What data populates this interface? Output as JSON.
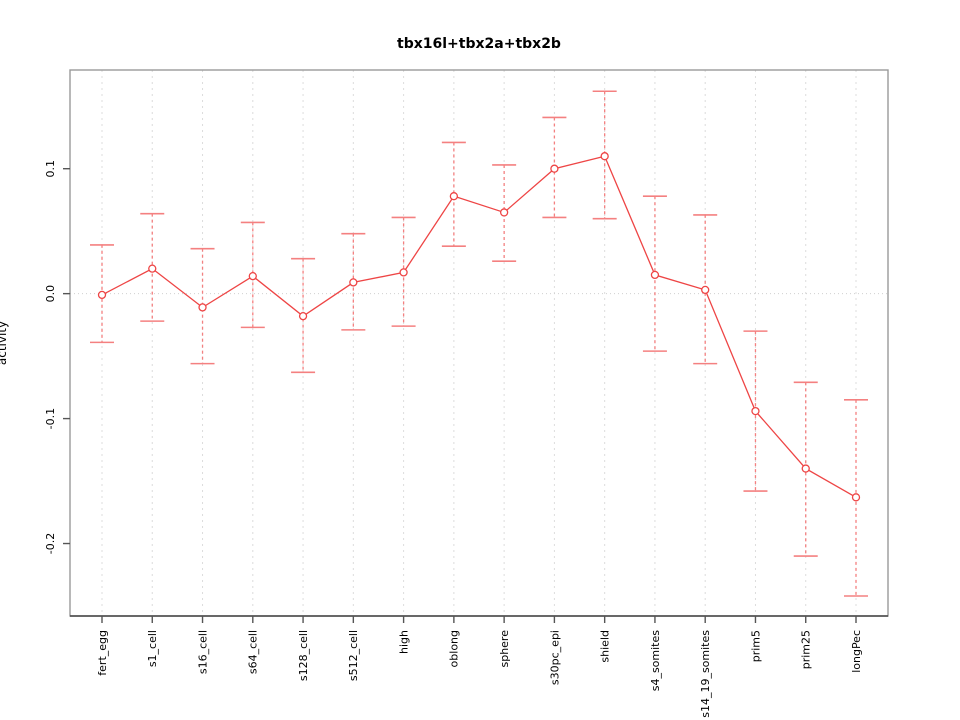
{
  "chart_data": {
    "type": "line",
    "title": "tbx16l+tbx2a+tbx2b",
    "ylabel": "activity",
    "xlabel": "",
    "categories": [
      "fert_egg",
      "s1_cell",
      "s16_cell",
      "s64_cell",
      "s128_cell",
      "s512_cell",
      "high",
      "oblong",
      "sphere",
      "s30pc_epi",
      "shield",
      "s4_somites",
      "s14_19_somites",
      "prim5",
      "prim25",
      "longPec"
    ],
    "values": [
      -0.001,
      0.02,
      -0.011,
      0.014,
      -0.018,
      0.009,
      0.017,
      0.078,
      0.065,
      0.1,
      0.11,
      0.015,
      0.003,
      -0.094,
      -0.14,
      -0.163
    ],
    "error_low": [
      -0.039,
      -0.022,
      -0.056,
      -0.027,
      -0.063,
      -0.029,
      -0.026,
      0.038,
      0.026,
      0.061,
      0.06,
      -0.046,
      -0.056,
      -0.158,
      -0.21,
      -0.242
    ],
    "error_high": [
      0.039,
      0.064,
      0.036,
      0.057,
      0.028,
      0.048,
      0.061,
      0.121,
      0.103,
      0.141,
      0.162,
      0.078,
      0.063,
      -0.03,
      -0.071,
      -0.085
    ],
    "ylim": [
      -0.258,
      0.179
    ],
    "y_ticks": {
      "values": [
        0.1,
        0.0,
        -0.1,
        -0.2
      ],
      "labels": [
        "0.1",
        "0.0",
        "-0.1",
        "-0.2"
      ]
    },
    "grid": {
      "vertical_per_category": true,
      "horizontal_zero_line": true,
      "style": "dotted"
    },
    "legend": "none",
    "marker": "open-circle",
    "colors": {
      "series": "#ee4545",
      "error_bars": "#f48080",
      "grid": "#dcdcdc",
      "zero_line": "#d0d0d0",
      "box": "#999999",
      "axis_bottom": "#444444",
      "ticks": "#555555",
      "text": "#000000",
      "background": "#ffffff"
    }
  }
}
